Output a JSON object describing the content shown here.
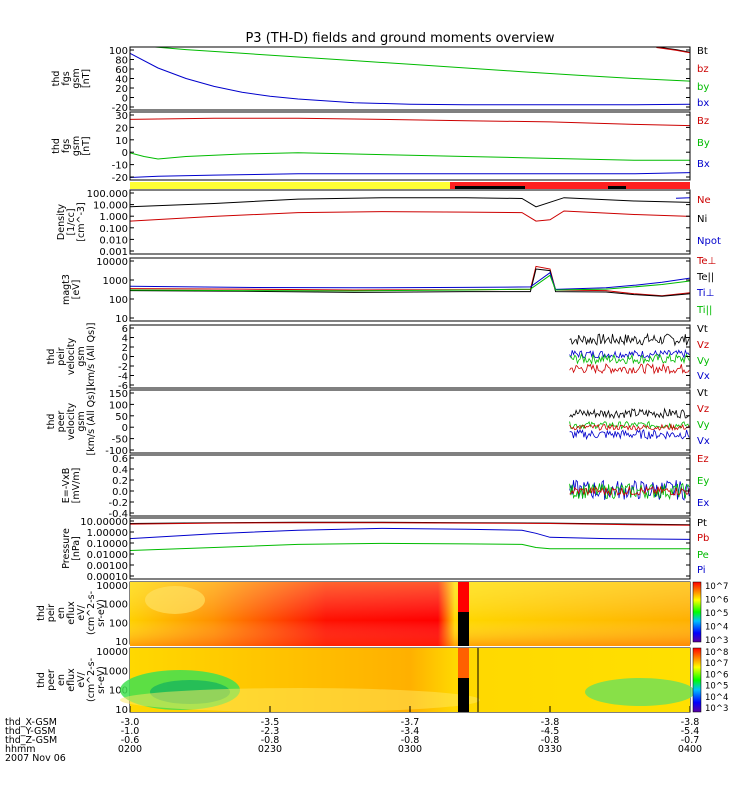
{
  "chart_data": {
    "type": "line",
    "title": "P3 (TH-D) fields and ground moments overview",
    "x_range_hours": [
      2.0,
      4.0
    ],
    "panels": [
      {
        "ylabel": [
          "thd",
          "fgs",
          "gsm",
          "[nT]"
        ],
        "yticks": [
          "100",
          "80",
          "60",
          "40",
          "20",
          "0",
          "-20"
        ],
        "ylim": [
          -20,
          100
        ],
        "legend": [
          {
            "name": "Bt",
            "color": "#000000"
          },
          {
            "name": "bz",
            "color": "#cc0000"
          },
          {
            "name": "by",
            "color": "#00bb00"
          },
          {
            "name": "bx",
            "color": "#0000cc"
          }
        ],
        "series": [
          {
            "name": "Bt",
            "color": "#000000",
            "x": [
              3.88,
              3.95,
              4.0
            ],
            "y": [
              100,
              95,
              90
            ]
          },
          {
            "name": "bz",
            "color": "#cc0000",
            "x": [
              3.88,
              3.95,
              4.0
            ],
            "y": [
              99,
              94,
              89
            ]
          },
          {
            "name": "by",
            "color": "#00bb00",
            "x": [
              2.0,
              2.2,
              2.4,
              2.6,
              2.8,
              3.0,
              3.2,
              3.4,
              3.6,
              3.8,
              4.0
            ],
            "y": [
              104,
              95,
              88,
              81,
              74,
              67,
              60,
              53,
              46,
              40,
              35
            ]
          },
          {
            "name": "bx",
            "color": "#0000cc",
            "x": [
              2.0,
              2.1,
              2.2,
              2.3,
              2.4,
              2.5,
              2.6,
              2.8,
              3.0,
              3.2,
              3.4,
              3.6,
              3.8,
              4.0
            ],
            "y": [
              88,
              60,
              40,
              25,
              14,
              6,
              1,
              -6,
              -9,
              -10,
              -10,
              -10,
              -10,
              -9
            ]
          }
        ]
      },
      {
        "ylabel": [
          "thd",
          "fgs",
          "gsm",
          "[nT]"
        ],
        "yticks": [
          "30",
          "20",
          "10",
          "0",
          "-10",
          "-20"
        ],
        "ylim": [
          -22,
          33
        ],
        "legend": [
          {
            "name": "Bz",
            "color": "#cc0000"
          },
          {
            "name": "By",
            "color": "#00bb00"
          },
          {
            "name": "Bx",
            "color": "#0000cc"
          }
        ],
        "series": [
          {
            "name": "Bz",
            "color": "#cc0000",
            "x": [
              2.0,
              2.3,
              2.6,
              2.9,
              3.2,
              3.5,
              3.8,
              4.0
            ],
            "y": [
              27,
              28,
              28,
              27,
              26,
              25,
              23,
              22
            ]
          },
          {
            "name": "By",
            "color": "#00bb00",
            "x": [
              2.0,
              2.05,
              2.1,
              2.2,
              2.4,
              2.6,
              2.8,
              3.0,
              3.2,
              3.4,
              3.6,
              3.8,
              4.0
            ],
            "y": [
              0,
              -3,
              -5,
              -3,
              -1,
              0,
              -1,
              -2,
              -3,
              -4,
              -5,
              -6,
              -6
            ]
          },
          {
            "name": "Bx",
            "color": "#0000cc",
            "x": [
              2.0,
              2.1,
              2.3,
              2.6,
              3.0,
              3.4,
              3.8,
              4.0
            ],
            "y": [
              -20,
              -19,
              -18,
              -17,
              -17,
              -17,
              -17,
              -16
            ]
          }
        ]
      },
      {
        "ylabel": [
          "Density",
          "[1/cc]",
          "[cm^-3]"
        ],
        "yticks": [
          "100.000",
          "10.000",
          "1.000",
          "0.100",
          "0.010",
          "0.001"
        ],
        "ylim_log": [
          -3.5,
          2.3
        ],
        "legend": [
          {
            "name": "Ne",
            "color": "#cc0000"
          },
          {
            "name": "Ni",
            "color": "#000000"
          },
          {
            "name": "Npot",
            "color": "#0000cc"
          }
        ],
        "series": [
          {
            "name": "Ni",
            "color": "#000000",
            "x": [
              2.0,
              2.3,
              2.6,
              2.9,
              3.2,
              3.4,
              3.45,
              3.55,
              3.8,
              4.0
            ],
            "y": [
              6,
              12,
              30,
              40,
              40,
              34,
              6,
              40,
              20,
              15
            ]
          },
          {
            "name": "Ne",
            "color": "#cc0000",
            "x": [
              2.0,
              2.3,
              2.6,
              2.9,
              3.2,
              3.4,
              3.45,
              3.5,
              3.55,
              3.8,
              4.0
            ],
            "y": [
              0.3,
              0.8,
              1.8,
              2.2,
              2.0,
              1.8,
              0.3,
              0.4,
              2.5,
              1.2,
              0.8
            ]
          },
          {
            "name": "Npot",
            "color": "#0000cc",
            "x": [
              3.95,
              4.0
            ],
            "y": [
              35,
              40
            ]
          }
        ]
      },
      {
        "ylabel": [
          "magt3",
          "[eV]"
        ],
        "yticks": [
          "10000",
          "1000",
          "100",
          "10"
        ],
        "ylim_log": [
          1.0,
          4.0
        ],
        "legend": [
          {
            "name": "Te⊥",
            "color": "#cc0000"
          },
          {
            "name": "Te||",
            "color": "#000000"
          },
          {
            "name": "Ti⊥",
            "color": "#0000cc"
          },
          {
            "name": "Ti||",
            "color": "#00bb00"
          }
        ],
        "series": [
          {
            "name": "Te⊥",
            "color": "#cc0000",
            "x": [
              2.0,
              2.4,
              2.8,
              3.2,
              3.43,
              3.45,
              3.5,
              3.52,
              3.7,
              3.8,
              3.9,
              4.0
            ],
            "y": [
              350,
              330,
              300,
              310,
              320,
              4000,
              3000,
              300,
              280,
              200,
              160,
              220
            ]
          },
          {
            "name": "Te||",
            "color": "#000000",
            "x": [
              2.0,
              2.4,
              2.8,
              3.2,
              3.43,
              3.45,
              3.5,
              3.52,
              3.7,
              3.8,
              3.9,
              4.0
            ],
            "y": [
              280,
              260,
              230,
              250,
              250,
              3000,
              2500,
              250,
              240,
              180,
              150,
              200
            ]
          },
          {
            "name": "Ti⊥",
            "color": "#0000cc",
            "x": [
              2.0,
              2.4,
              2.8,
              3.2,
              3.43,
              3.5,
              3.52,
              3.7,
              3.8,
              3.9,
              4.0
            ],
            "y": [
              450,
              400,
              380,
              400,
              420,
              2000,
              320,
              380,
              500,
              700,
              1100
            ]
          },
          {
            "name": "Ti||",
            "color": "#00bb00",
            "x": [
              2.0,
              2.4,
              2.8,
              3.2,
              3.43,
              3.5,
              3.52,
              3.7,
              3.8,
              3.9,
              4.0
            ],
            "y": [
              300,
              280,
              270,
              300,
              330,
              1500,
              300,
              330,
              420,
              550,
              800
            ]
          }
        ]
      },
      {
        "ylabel": [
          "thd",
          "peir",
          "velocity",
          "gsm",
          "[km/s (All Qs)]"
        ],
        "yticks": [
          "6",
          "4",
          "2",
          "0",
          "-2",
          "-4",
          "-6"
        ],
        "ylim": [
          -6.5,
          6.5
        ],
        "legend": [
          {
            "name": "Vt",
            "color": "#000000"
          },
          {
            "name": "Vz",
            "color": "#cc0000"
          },
          {
            "name": "Vy",
            "color": "#00bb00"
          },
          {
            "name": "Vx",
            "color": "#0000cc"
          }
        ],
        "noise": [
          {
            "name": "Vt",
            "color": "#000000",
            "x0": 3.57,
            "mean": 3.5,
            "amp": 1.2
          },
          {
            "name": "Vx",
            "color": "#0000cc",
            "x0": 3.57,
            "mean": 0.5,
            "amp": 0.8
          },
          {
            "name": "Vy",
            "color": "#00bb00",
            "x0": 3.57,
            "mean": -0.5,
            "amp": 1.0
          },
          {
            "name": "Vz",
            "color": "#cc0000",
            "x0": 3.57,
            "mean": -2.5,
            "amp": 1.0
          }
        ]
      },
      {
        "ylabel": [
          "thd",
          "peer",
          "velocity",
          "gsm",
          "[km/s (All Qs)]"
        ],
        "yticks": [
          "150",
          "100",
          "50",
          "0",
          "-50",
          "-100"
        ],
        "ylim": [
          -110,
          160
        ],
        "legend": [
          {
            "name": "Vt",
            "color": "#000000"
          },
          {
            "name": "Vz",
            "color": "#cc0000"
          },
          {
            "name": "Vy",
            "color": "#00bb00"
          },
          {
            "name": "Vx",
            "color": "#0000cc"
          }
        ],
        "noise": [
          {
            "name": "Vt",
            "color": "#000000",
            "x0": 3.57,
            "mean": 60,
            "amp": 20
          },
          {
            "name": "Vy",
            "color": "#00bb00",
            "x0": 3.57,
            "mean": 10,
            "amp": 15
          },
          {
            "name": "Vz",
            "color": "#cc0000",
            "x0": 3.57,
            "mean": 0,
            "amp": 12
          },
          {
            "name": "Vx",
            "color": "#0000cc",
            "x0": 3.57,
            "mean": -30,
            "amp": 20
          }
        ]
      },
      {
        "ylabel": [
          "E=-VxB",
          "[mV/m]"
        ],
        "yticks": [
          "0.6",
          "0.4",
          "0.2",
          "0.0",
          "-0.2",
          "-0.4"
        ],
        "ylim": [
          -0.45,
          0.65
        ],
        "legend": [
          {
            "name": "Ez",
            "color": "#cc0000"
          },
          {
            "name": "Ey",
            "color": "#00bb00"
          },
          {
            "name": "Ex",
            "color": "#0000cc"
          }
        ],
        "noise": [
          {
            "name": "Ex",
            "color": "#0000cc",
            "x0": 3.57,
            "mean": 0.02,
            "amp": 0.18
          },
          {
            "name": "Ey",
            "color": "#00bb00",
            "x0": 3.57,
            "mean": 0.0,
            "amp": 0.14
          },
          {
            "name": "Ez",
            "color": "#cc0000",
            "x0": 3.57,
            "mean": 0.0,
            "amp": 0.08
          }
        ]
      },
      {
        "ylabel": [
          "Pressure",
          "[nPa]"
        ],
        "yticks": [
          "10.00000",
          "1.00000",
          "0.10000",
          "0.01000",
          "0.00100",
          "0.00010"
        ],
        "ylim_log": [
          -4.5,
          1.5
        ],
        "legend": [
          {
            "name": "Pt",
            "color": "#000000"
          },
          {
            "name": "Pb",
            "color": "#cc0000"
          },
          {
            "name": "Pe",
            "color": "#00bb00"
          },
          {
            "name": "Pi",
            "color": "#0000cc"
          }
        ],
        "series": [
          {
            "name": "Pt",
            "color": "#000000",
            "x": [
              2.0,
              2.3,
              2.6,
              2.9,
              3.2,
              3.5,
              3.8,
              4.0
            ],
            "y": [
              9,
              11,
              12,
              12,
              11,
              10,
              8,
              7
            ]
          },
          {
            "name": "Pb",
            "color": "#cc0000",
            "x": [
              2.0,
              2.3,
              2.6,
              2.9,
              3.2,
              3.5,
              3.8,
              4.0
            ],
            "y": [
              8,
              10,
              11,
              11,
              10,
              9,
              7,
              6
            ]
          },
          {
            "name": "Pi",
            "color": "#0000cc",
            "x": [
              2.0,
              2.3,
              2.6,
              2.9,
              3.2,
              3.4,
              3.45,
              3.5,
              3.7,
              4.0
            ],
            "y": [
              0.3,
              0.9,
              2.0,
              3.0,
              2.5,
              2.0,
              1.0,
              0.4,
              0.3,
              0.25
            ]
          },
          {
            "name": "Pe",
            "color": "#00bb00",
            "x": [
              2.0,
              2.3,
              2.6,
              2.9,
              3.2,
              3.4,
              3.45,
              3.5,
              3.7,
              4.0
            ],
            "y": [
              0.02,
              0.04,
              0.08,
              0.1,
              0.09,
              0.08,
              0.04,
              0.03,
              0.03,
              0.03
            ]
          }
        ]
      },
      {
        "type": "heatmap",
        "ylabel": [
          "thd",
          "peir",
          "en",
          "eflux",
          "eV/",
          "(cm^2-s-",
          "sr-eV)"
        ],
        "yticks": [
          "10000",
          "1000",
          "100",
          "10"
        ],
        "colorbar_ticks": [
          "10^7",
          "10^6",
          "10^5",
          "10^4",
          "10^3"
        ]
      },
      {
        "type": "heatmap",
        "ylabel": [
          "thd",
          "peer",
          "en",
          "eflux",
          "eV/",
          "(cm^2-s-",
          "sr-eV)"
        ],
        "yticks": [
          "10000",
          "1000",
          "100",
          "10"
        ],
        "colorbar_ticks": [
          "10^8",
          "10^7",
          "10^6",
          "10^5",
          "10^4",
          "10^3"
        ]
      }
    ],
    "x_axis": {
      "rows": [
        {
          "label": "thd_X-GSM",
          "values": [
            "-3.0",
            "-3.5",
            "-3.7",
            "-3.8",
            "-3.8"
          ]
        },
        {
          "label": "thd_Y-GSM",
          "values": [
            "-1.0",
            "-2.3",
            "-3.4",
            "-4.5",
            "-5.4"
          ]
        },
        {
          "label": "thd_Z-GSM",
          "values": [
            "-0.6",
            "-0.8",
            "-0.8",
            "-0.8",
            "-0.7"
          ]
        },
        {
          "label": "hhmm",
          "values": [
            "0200",
            "0230",
            "0300",
            "0330",
            "0400"
          ]
        }
      ],
      "date": "2007 Nov 06"
    }
  }
}
